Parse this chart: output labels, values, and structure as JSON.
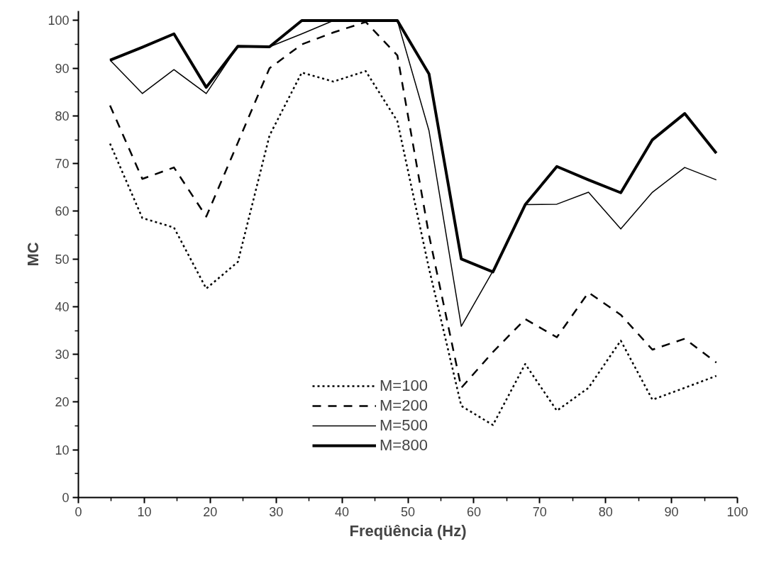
{
  "chart_data": {
    "type": "line",
    "xlabel": "Freqüência (Hz)",
    "ylabel": "MC",
    "x": [
      4.8,
      9.7,
      14.5,
      19.4,
      24.2,
      29.0,
      33.9,
      38.7,
      43.6,
      48.4,
      53.2,
      58.1,
      62.9,
      67.8,
      72.6,
      77.4,
      82.3,
      87.1,
      92.0,
      96.8
    ],
    "series": [
      {
        "name": "M=100",
        "color": "#000000",
        "line_style": "dotted",
        "values": [
          74.2,
          58.6,
          56.6,
          43.8,
          49.4,
          75.9,
          89.1,
          87.2,
          89.4,
          78.9,
          48,
          19.2,
          15.2,
          28.0,
          18.2,
          23,
          32.9,
          20.5,
          23,
          25.5
        ]
      },
      {
        "name": "M=200",
        "color": "#000000",
        "line_style": "dashed",
        "values": [
          82.2,
          66.8,
          69.2,
          58.9,
          74.4,
          90.0,
          95.0,
          97.5,
          99.7,
          92.7,
          55,
          23.0,
          30.5,
          37.4,
          33.6,
          43.0,
          38.3,
          31.0,
          33.3,
          28.3
        ]
      },
      {
        "name": "M=500",
        "color": "#000000",
        "line_style": "solid",
        "values": [
          91.7,
          84.7,
          89.7,
          84.7,
          94.6,
          94.5,
          97.2,
          100,
          100,
          100,
          76.9,
          35.9,
          47.5,
          61.4,
          61.5,
          64.0,
          56.3,
          64.0,
          69.2,
          66.6
        ]
      },
      {
        "name": "M=800",
        "color": "#000000",
        "line_style": "solid",
        "values": [
          91.7,
          94.4,
          97.2,
          86.0,
          94.6,
          94.5,
          100,
          100,
          100,
          100,
          88.8,
          50.0,
          47.3,
          61.4,
          69.4,
          66.6,
          63.9,
          75.0,
          80.5,
          72.2
        ]
      }
    ],
    "xlim": [
      0,
      100
    ],
    "xticks": [
      0,
      10,
      20,
      30,
      40,
      50,
      60,
      70,
      80,
      90,
      100
    ],
    "ylim": [
      0,
      102
    ],
    "yticks": [
      0,
      10,
      20,
      30,
      40,
      50,
      60,
      70,
      80,
      90,
      100
    ],
    "grid": false,
    "legend": "bottom"
  }
}
